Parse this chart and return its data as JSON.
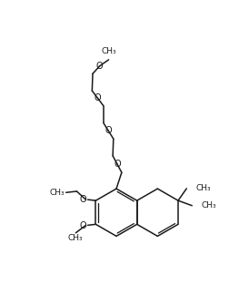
{
  "background_color": "#ffffff",
  "line_color": "#1a1a1a",
  "line_width": 1.1,
  "font_size": 6.5,
  "figsize": [
    2.63,
    3.22
  ],
  "dpi": 100,
  "xlim": [
    0,
    10
  ],
  "ylim": [
    0,
    12
  ]
}
